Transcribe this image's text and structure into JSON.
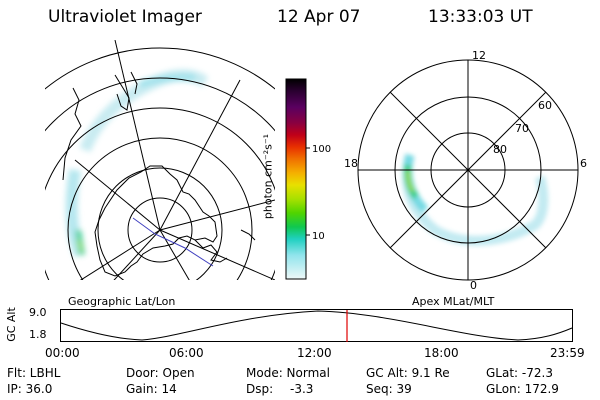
{
  "header": {
    "instrument": "Ultraviolet Imager",
    "date": "12 Apr 07",
    "time": "13:33:03 UT"
  },
  "left_map": {
    "caption": "Geographic Lat/Lon"
  },
  "right_map": {
    "caption": "Apex MLat/MLT",
    "mlt_labels": [
      "12",
      "18",
      "6",
      "0"
    ],
    "lat_labels": [
      "60",
      "70",
      "80"
    ]
  },
  "colorbar": {
    "unit_label": "photon cm⁻²s⁻¹",
    "tick_labels": [
      "100",
      "10"
    ],
    "colors": [
      "#000000",
      "#2a0030",
      "#5a0060",
      "#8a0040",
      "#b00020",
      "#d00010",
      "#e83000",
      "#f06000",
      "#f59000",
      "#f5c000",
      "#e8e000",
      "#a8e000",
      "#60d800",
      "#20d020",
      "#00c878",
      "#20d0c8",
      "#80e0e8",
      "#c8f0f0",
      "#eef8f8"
    ]
  },
  "orbit": {
    "axis_label": "GC Alt",
    "y_max": "9.0",
    "y_min": "1.8",
    "time_ticks": [
      "00:00",
      "06:00",
      "12:00",
      "18:00",
      "23:59"
    ],
    "current_marker_color": "#e00000"
  },
  "footer": {
    "filter": "Flt: LBHL",
    "ip": "IP: 36.0",
    "door": "Door: Open",
    "gain": "Gain: 14",
    "mode": "Mode: Normal",
    "dsp_label": "Dsp:",
    "dsp_value": "-3.3",
    "gc_alt": "GC Alt: 9.1 Re",
    "seq": "Seq: 39",
    "glat": "GLat: -72.3",
    "glon": "GLon: 172.9"
  }
}
